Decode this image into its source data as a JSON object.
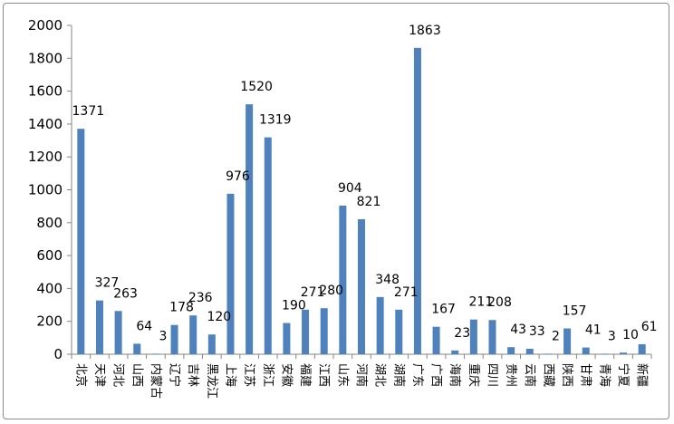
{
  "chart_data": {
    "type": "bar",
    "title": "",
    "xlabel": "",
    "ylabel": "",
    "ylim": [
      0,
      2000
    ],
    "yticks": [
      0,
      200,
      400,
      600,
      800,
      1000,
      1200,
      1400,
      1600,
      1800,
      2000
    ],
    "grid": false,
    "legend": "none",
    "bar_color": "#4f81bd",
    "categories": [
      "北京",
      "天津",
      "河北",
      "山西",
      "内蒙古",
      "辽宁",
      "吉林",
      "黑龙江",
      "上海",
      "江苏",
      "浙江",
      "安徽",
      "福建",
      "江西",
      "山东",
      "河南",
      "湖北",
      "湖南",
      "广东",
      "广西",
      "海南",
      "重庆",
      "四川",
      "贵州",
      "云南",
      "西藏",
      "陕西",
      "甘肃",
      "青海",
      "宁夏",
      "新疆"
    ],
    "values": [
      1371,
      327,
      263,
      64,
      3,
      178,
      236,
      120,
      976,
      1520,
      1319,
      190,
      271,
      280,
      904,
      821,
      348,
      271,
      1863,
      167,
      23,
      211,
      208,
      43,
      33,
      2,
      157,
      41,
      3,
      10,
      61
    ]
  }
}
